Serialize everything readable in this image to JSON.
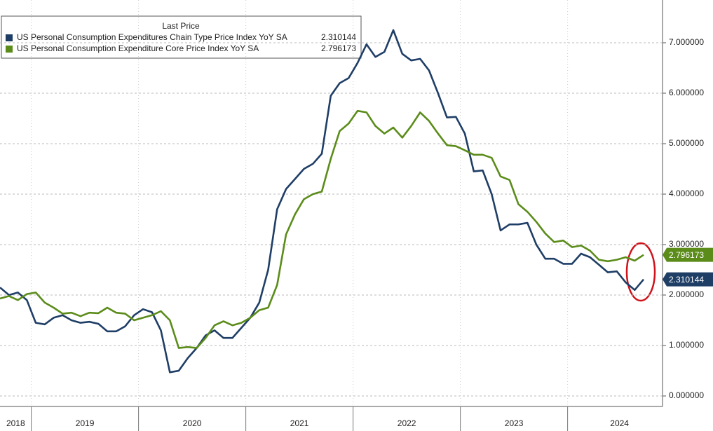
{
  "chart_data": {
    "type": "line",
    "legend_title": "Last Price",
    "x_labels": [
      "2018",
      "2019",
      "2020",
      "2021",
      "2022",
      "2023",
      "2024"
    ],
    "ylim": [
      0,
      7.8
    ],
    "yticks": [
      {
        "value": 0,
        "label": "0.000000"
      },
      {
        "value": 1,
        "label": "1.000000"
      },
      {
        "value": 2,
        "label": "2.000000"
      },
      {
        "value": 3,
        "label": "3.000000"
      },
      {
        "value": 4,
        "label": "4.000000"
      },
      {
        "value": 5,
        "label": "5.000000"
      },
      {
        "value": 6,
        "label": "6.000000"
      },
      {
        "value": 7,
        "label": "7.000000"
      }
    ],
    "grid": true,
    "series": [
      {
        "name": "US Personal Consumption Expenditures Chain Type Price Index YoY SA",
        "color": "#1f3e66",
        "last_label": "2.310144",
        "values": [
          2.15,
          2.0,
          2.05,
          1.9,
          1.45,
          1.42,
          1.55,
          1.6,
          1.5,
          1.45,
          1.47,
          1.43,
          1.28,
          1.28,
          1.38,
          1.6,
          1.72,
          1.66,
          1.3,
          0.47,
          0.5,
          0.75,
          0.95,
          1.2,
          1.3,
          1.15,
          1.15,
          1.35,
          1.55,
          1.85,
          2.5,
          3.7,
          4.1,
          4.3,
          4.5,
          4.6,
          4.8,
          5.95,
          6.2,
          6.3,
          6.6,
          6.97,
          6.72,
          6.82,
          7.25,
          6.78,
          6.65,
          6.68,
          6.45,
          6.0,
          5.52,
          5.53,
          5.2,
          4.45,
          4.47,
          4.0,
          3.28,
          3.4,
          3.4,
          3.43,
          3.0,
          2.72,
          2.72,
          2.62,
          2.62,
          2.82,
          2.75,
          2.6,
          2.45,
          2.47,
          2.25,
          2.1,
          2.310144
        ]
      },
      {
        "name": "US Personal Consumption Expenditure Core Price Index YoY SA",
        "color": "#5b8c1a",
        "last_label": "2.796173",
        "values": [
          1.93,
          1.98,
          1.9,
          2.02,
          2.05,
          1.85,
          1.75,
          1.63,
          1.65,
          1.58,
          1.65,
          1.64,
          1.75,
          1.65,
          1.63,
          1.5,
          1.55,
          1.6,
          1.68,
          1.5,
          0.95,
          0.97,
          0.95,
          1.15,
          1.4,
          1.48,
          1.4,
          1.45,
          1.55,
          1.7,
          1.75,
          2.2,
          3.2,
          3.6,
          3.9,
          4.0,
          4.05,
          4.7,
          5.25,
          5.4,
          5.65,
          5.62,
          5.35,
          5.2,
          5.32,
          5.12,
          5.35,
          5.62,
          5.45,
          5.2,
          4.97,
          4.95,
          4.87,
          4.78,
          4.78,
          4.72,
          4.35,
          4.28,
          3.8,
          3.65,
          3.45,
          3.22,
          3.05,
          3.08,
          2.95,
          2.98,
          2.88,
          2.7,
          2.67,
          2.7,
          2.75,
          2.68,
          2.796173
        ]
      }
    ]
  }
}
